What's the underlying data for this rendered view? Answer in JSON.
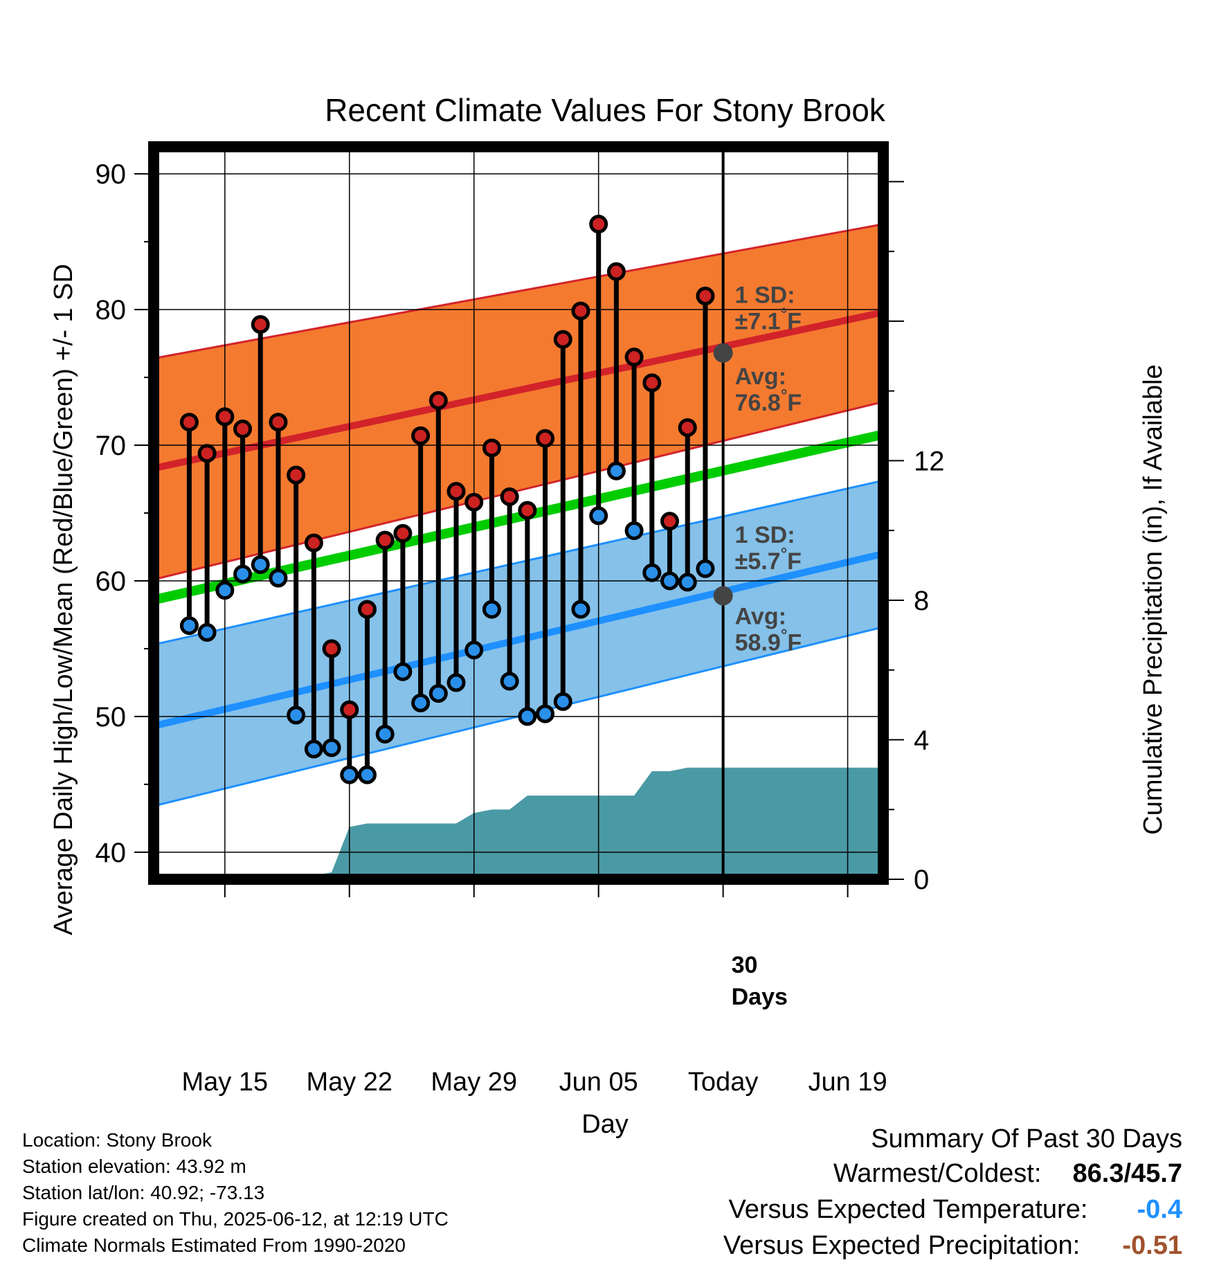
{
  "chart_data": {
    "type": "line",
    "title": "Recent Climate Values For Stony Brook",
    "xlabel": "Day",
    "ylabel": "Average Daily High/Low/Mean (Red/Blue/Green) +/- 1 SD",
    "y2label": "Cumulative Precipitation (in), If Available",
    "ylim": [
      38,
      92
    ],
    "y2lim": [
      0,
      21
    ],
    "y_ticks": [
      40,
      50,
      60,
      70,
      80,
      90
    ],
    "y2_ticks": [
      0,
      4,
      8,
      12
    ],
    "x_range": [
      "2025-05-11",
      "2025-06-21"
    ],
    "x_ticks": [
      {
        "date": "2025-05-15",
        "label": "May 15"
      },
      {
        "date": "2025-05-22",
        "label": "May 22"
      },
      {
        "date": "2025-05-29",
        "label": "May 29"
      },
      {
        "date": "2025-06-05",
        "label": "Jun 05"
      },
      {
        "date": "2025-06-12",
        "label": "Today"
      },
      {
        "date": "2025-06-19",
        "label": "Jun 19"
      }
    ],
    "grid": true,
    "today": "2025-06-12",
    "today_label": "30\nDays",
    "normals": {
      "dates": [
        "2025-05-11",
        "2025-06-21"
      ],
      "high_mean": [
        68.3,
        79.8
      ],
      "high_sd_upper": [
        76.4,
        86.3
      ],
      "high_sd_lower": [
        60.1,
        73.2
      ],
      "daily_mean": [
        58.6,
        70.8
      ],
      "low_mean": [
        49.3,
        62.0
      ],
      "low_sd_upper": [
        55.3,
        67.4
      ],
      "low_sd_lower": [
        43.4,
        56.6
      ]
    },
    "annotations": [
      {
        "name": "high-sd",
        "date": "2025-06-12",
        "value": 80.5,
        "lines": [
          "1 SD:",
          "±7.1°F"
        ]
      },
      {
        "name": "high-avg",
        "date": "2025-06-12",
        "value": 74.5,
        "lines": [
          "Avg:",
          "76.8°F"
        ]
      },
      {
        "name": "low-sd",
        "date": "2025-06-12",
        "value": 62.8,
        "lines": [
          "1 SD:",
          "±5.7°F"
        ]
      },
      {
        "name": "low-avg",
        "date": "2025-06-12",
        "value": 56.8,
        "lines": [
          "Avg:",
          "58.9°F"
        ]
      }
    ],
    "today_avg_high": 76.8,
    "today_avg_low": 58.9,
    "observations": {
      "dates": [
        "2025-05-13",
        "2025-05-14",
        "2025-05-15",
        "2025-05-16",
        "2025-05-17",
        "2025-05-18",
        "2025-05-19",
        "2025-05-20",
        "2025-05-21",
        "2025-05-22",
        "2025-05-23",
        "2025-05-24",
        "2025-05-25",
        "2025-05-26",
        "2025-05-27",
        "2025-05-28",
        "2025-05-29",
        "2025-05-30",
        "2025-05-31",
        "2025-06-01",
        "2025-06-02",
        "2025-06-03",
        "2025-06-04",
        "2025-06-05",
        "2025-06-06",
        "2025-06-07",
        "2025-06-08",
        "2025-06-09",
        "2025-06-10",
        "2025-06-11"
      ],
      "high": [
        71.7,
        69.4,
        72.1,
        71.2,
        78.9,
        71.7,
        67.8,
        62.8,
        55.0,
        50.5,
        57.9,
        63.0,
        63.5,
        70.7,
        73.3,
        66.6,
        65.8,
        69.8,
        66.2,
        65.2,
        70.5,
        77.8,
        79.9,
        86.3,
        82.8,
        76.5,
        74.6,
        64.4,
        71.3,
        81.0
      ],
      "low": [
        56.7,
        56.2,
        59.3,
        60.5,
        61.2,
        60.2,
        50.1,
        47.6,
        47.7,
        45.7,
        45.7,
        48.7,
        53.3,
        51.0,
        51.7,
        52.5,
        54.9,
        57.9,
        52.6,
        50.0,
        50.2,
        51.1,
        57.9,
        64.8,
        68.1,
        63.7,
        60.6,
        60.0,
        59.9,
        60.9
      ]
    },
    "precip": {
      "dates": [
        "2025-05-11",
        "2025-05-12",
        "2025-05-13",
        "2025-05-14",
        "2025-05-15",
        "2025-05-16",
        "2025-05-17",
        "2025-05-18",
        "2025-05-19",
        "2025-05-20",
        "2025-05-21",
        "2025-05-22",
        "2025-05-23",
        "2025-05-24",
        "2025-05-25",
        "2025-05-26",
        "2025-05-27",
        "2025-05-28",
        "2025-05-29",
        "2025-05-30",
        "2025-05-31",
        "2025-06-01",
        "2025-06-02",
        "2025-06-03",
        "2025-06-04",
        "2025-06-05",
        "2025-06-06",
        "2025-06-07",
        "2025-06-08",
        "2025-06-09",
        "2025-06-10",
        "2025-06-11",
        "2025-06-12",
        "2025-06-21"
      ],
      "cumulative": [
        0.0,
        0.0,
        0.0,
        0.1,
        0.1,
        0.1,
        0.1,
        0.1,
        0.1,
        0.1,
        0.2,
        1.5,
        1.6,
        1.6,
        1.6,
        1.6,
        1.6,
        1.6,
        1.9,
        2.0,
        2.0,
        2.4,
        2.4,
        2.4,
        2.4,
        2.4,
        2.4,
        2.4,
        3.1,
        3.1,
        3.2,
        3.2,
        3.2,
        3.2
      ]
    },
    "colors": {
      "high_band": "#f47a30",
      "high_line": "#d2232a",
      "low_band": "#85c1e9",
      "low_line": "#1e90ff",
      "mean_line": "#00cc00",
      "precip": "#4a9aa5",
      "annotation": "#444444",
      "obs_high": "#cc2222",
      "obs_low": "#2a8fe8"
    }
  },
  "footer": {
    "location": "Location: Stony Brook",
    "elevation": "Station elevation: 43.92 m",
    "latlon": "Station lat/lon: 40.92; -73.13",
    "created": "Figure created on Thu, 2025-06-12, at 12:19 UTC",
    "normals": "Climate Normals Estimated From 1990-2020"
  },
  "summary": {
    "title": "Summary Of Past 30 Days",
    "warm_cold_label": "Warmest/Coldest:",
    "warm_cold_value": "86.3/45.7",
    "temp_label": "Versus Expected Temperature:",
    "temp_value": "-0.4",
    "temp_color": "#1e90ff",
    "precip_label": "Versus Expected Precipitation:",
    "precip_value": "-0.51",
    "precip_color": "#a0522d"
  }
}
